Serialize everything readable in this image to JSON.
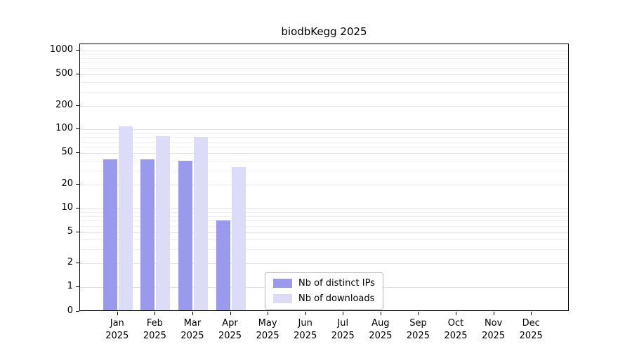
{
  "chart_data": {
    "type": "bar",
    "title": "biodbKegg 2025",
    "year": "2025",
    "categories": [
      "Jan",
      "Feb",
      "Mar",
      "Apr",
      "May",
      "Jun",
      "Jul",
      "Aug",
      "Sep",
      "Oct",
      "Nov",
      "Dec"
    ],
    "series": [
      {
        "name": "Nb of distinct IPs",
        "color": "#9999ee",
        "values": [
          42,
          42,
          40,
          7,
          0,
          0,
          0,
          0,
          0,
          0,
          0,
          0
        ]
      },
      {
        "name": "Nb of downloads",
        "color": "#dcdcf8",
        "values": [
          110,
          82,
          80,
          33,
          0,
          0,
          0,
          0,
          0,
          0,
          0,
          0
        ]
      }
    ],
    "y_ticks": [
      0,
      1,
      2,
      5,
      10,
      20,
      50,
      100,
      200,
      500,
      1000
    ],
    "y_scale": "log",
    "ylim": [
      0,
      1200
    ],
    "grid": true,
    "legend_position": "bottom-center"
  }
}
